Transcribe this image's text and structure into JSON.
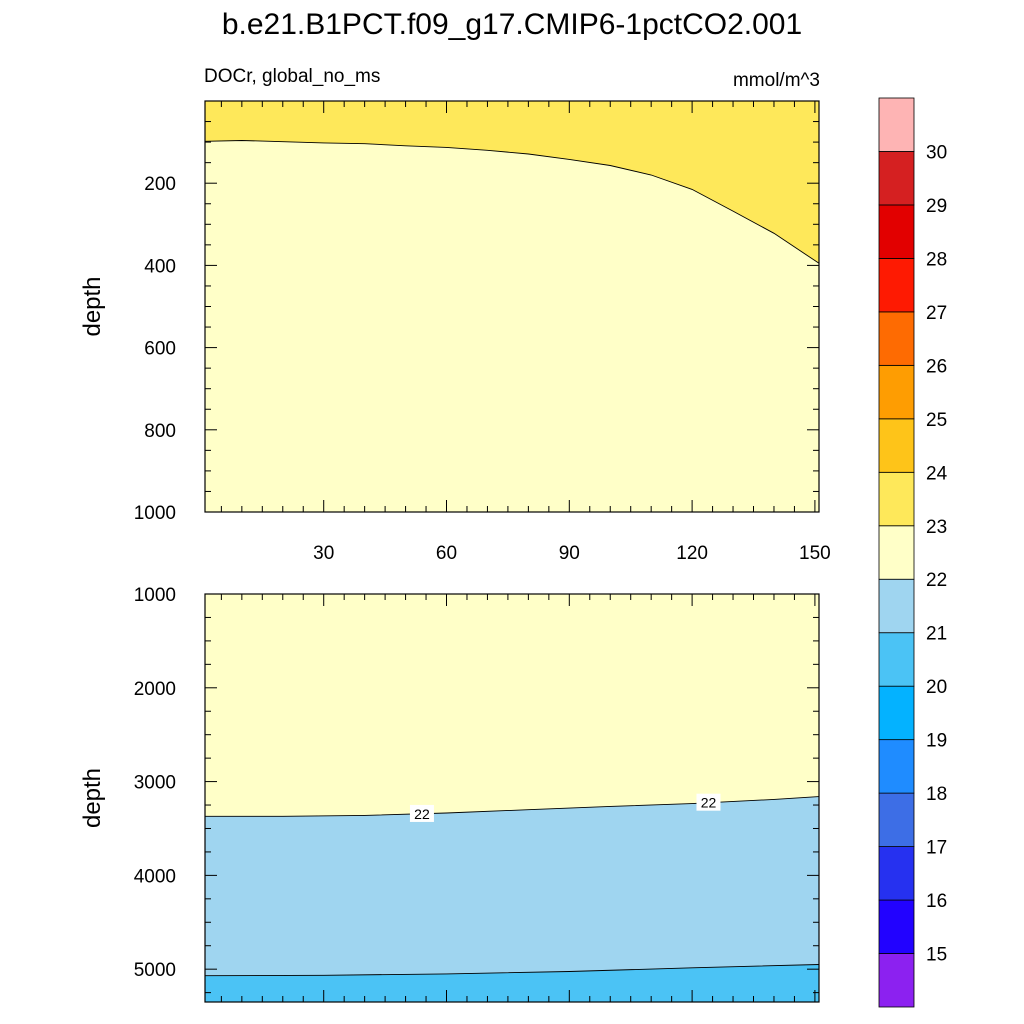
{
  "chart_data": {
    "type": "contour",
    "title": "b.e21.B1PCT.f09_g17.CMIP6-1pctCO2.001",
    "left_label": "DOCr, global_no_ms",
    "right_label": "mmol/m^3",
    "x_ticks": [
      30,
      60,
      90,
      120,
      150
    ],
    "x_range": [
      1,
      151
    ],
    "panels": [
      {
        "name": "upper",
        "ylabel": "depth",
        "y_range": [
          0,
          1000
        ],
        "y_ticks": [
          200,
          400,
          600,
          800,
          1000
        ],
        "y_tick_labels": [
          "200",
          "400",
          "600",
          "800",
          "1000"
        ],
        "regions": [
          {
            "level": "23-24",
            "color": "#fee85a",
            "description": "above boundary"
          },
          {
            "level": "22-23",
            "color": "#ffffc8",
            "description": "below boundary"
          }
        ],
        "boundary_22_23": {
          "x": [
            1,
            10,
            20,
            30,
            40,
            50,
            60,
            70,
            80,
            90,
            100,
            110,
            120,
            130,
            140,
            151
          ],
          "depth": [
            98,
            96,
            99,
            102,
            104,
            109,
            113,
            120,
            129,
            142,
            157,
            180,
            215,
            268,
            322,
            395
          ]
        }
      },
      {
        "name": "lower",
        "ylabel": "depth",
        "y_range": [
          1000,
          5350
        ],
        "y_ticks": [
          1000,
          2000,
          3000,
          4000,
          5000
        ],
        "y_tick_labels": [
          "1000",
          "2000",
          "3000",
          "4000",
          "5000"
        ],
        "regions": [
          {
            "level": "22-23",
            "color": "#ffffc8"
          },
          {
            "level": "21-22",
            "color": "#9fd5f0"
          },
          {
            "level": "20-21",
            "color": "#4bc3f5"
          }
        ],
        "contour_22": {
          "x": [
            1,
            20,
            40,
            60,
            80,
            100,
            120,
            140,
            151
          ],
          "depth": [
            3370,
            3370,
            3360,
            3335,
            3300,
            3265,
            3235,
            3190,
            3160
          ]
        },
        "contour_21": {
          "x": [
            1,
            30,
            60,
            90,
            120,
            151
          ],
          "depth": [
            5070,
            5065,
            5050,
            5025,
            4985,
            4950
          ]
        },
        "contour_labels": [
          {
            "text": "22",
            "x": 54,
            "depth": 3345
          },
          {
            "text": "22",
            "x": 124,
            "depth": 3225
          }
        ]
      }
    ],
    "colorbar": {
      "levels": [
        "15",
        "16",
        "17",
        "18",
        "19",
        "20",
        "21",
        "22",
        "23",
        "24",
        "25",
        "26",
        "27",
        "28",
        "29",
        "30"
      ],
      "colors": [
        "#8c21f0",
        "#2202ff",
        "#2631f0",
        "#3d6ee6",
        "#1f8cff",
        "#04b2ff",
        "#4bc3f5",
        "#9fd5f0",
        "#ffffc8",
        "#fee85a",
        "#fec419",
        "#fe9d02",
        "#fe6b02",
        "#fe1a02",
        "#e20000",
        "#d52021",
        "#feb4b4"
      ]
    }
  }
}
